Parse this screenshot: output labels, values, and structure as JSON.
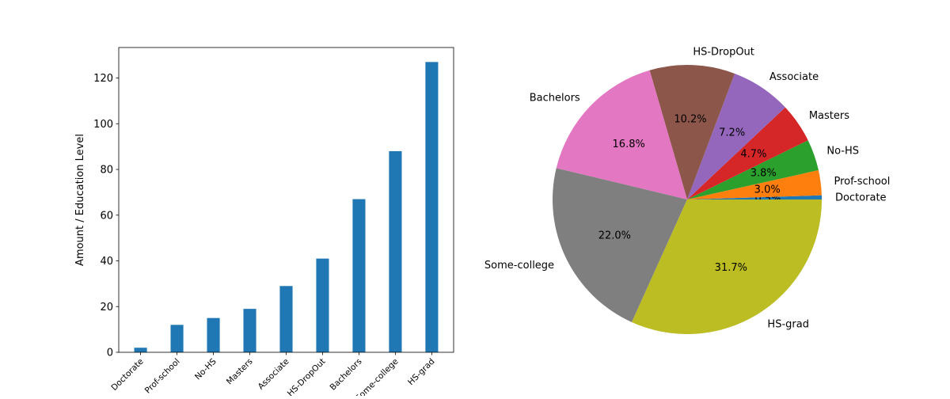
{
  "chart_data": [
    {
      "type": "bar",
      "categories": [
        "Doctorate",
        "Prof-school",
        "No-HS",
        "Masters",
        "Associate",
        "HS-DropOut",
        "Bachelors",
        "Some-college",
        "HS-grad"
      ],
      "values": [
        2,
        12,
        15,
        19,
        29,
        41,
        67,
        88,
        127
      ],
      "ylabel": "Amount / Education Level",
      "xlabel": "",
      "ylim": [
        0,
        133.35
      ],
      "yticks": [
        0,
        20,
        40,
        60,
        80,
        100,
        120
      ],
      "color": "#1f77b4",
      "grid": false
    },
    {
      "type": "pie",
      "labels": [
        "Doctorate",
        "Prof-school",
        "No-HS",
        "Masters",
        "Associate",
        "HS-DropOut",
        "Bachelors",
        "Some-college",
        "HS-grad"
      ],
      "values": [
        2,
        12,
        15,
        19,
        29,
        41,
        67,
        88,
        127
      ],
      "pct_labels": [
        "0.5%",
        "3.0%",
        "3.8%",
        "4.7%",
        "7.2%",
        "10.2%",
        "16.8%",
        "22.0%",
        "31.7%"
      ],
      "colors": [
        "#1f77b4",
        "#ff7f0e",
        "#2ca02c",
        "#d62728",
        "#9467bd",
        "#8c564b",
        "#e377c2",
        "#7f7f7f",
        "#bcbd22"
      ]
    }
  ]
}
